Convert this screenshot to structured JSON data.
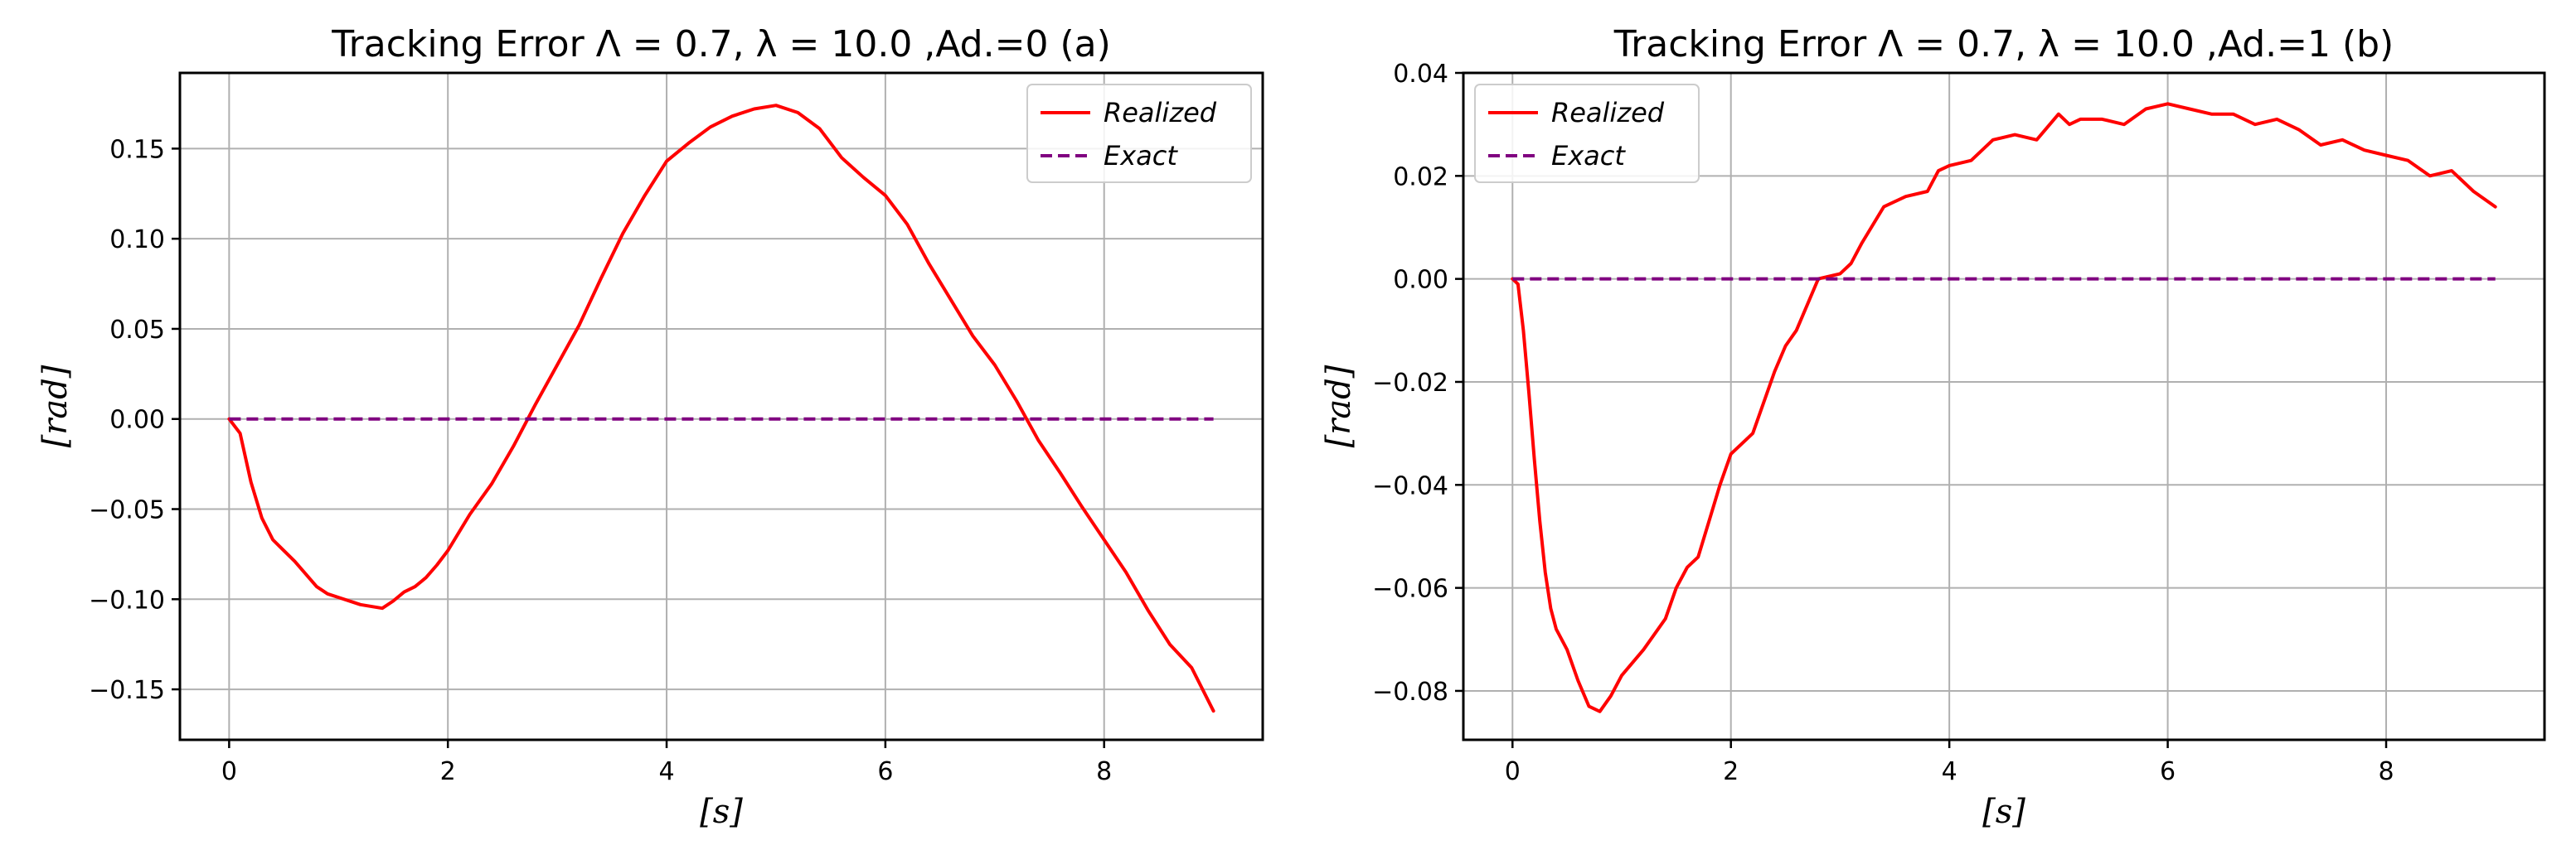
{
  "chart_data": [
    {
      "type": "line",
      "title": "Tracking Error Λ = 0.7, λ = 10.0 ,Ad.=0  (a)",
      "xlabel": "[s]",
      "ylabel": "[rad]",
      "xlim": [
        -0.45,
        9.45
      ],
      "ylim": [
        -0.178,
        0.192
      ],
      "xticks": [
        0,
        2,
        4,
        6,
        8
      ],
      "xtick_labels": [
        "0",
        "2",
        "4",
        "6",
        "8"
      ],
      "yticks": [
        -0.15,
        -0.1,
        -0.05,
        0.0,
        0.05,
        0.1,
        0.15
      ],
      "ytick_labels": [
        "−0.15",
        "−0.10",
        "−0.05",
        "0.00",
        "0.05",
        "0.10",
        "0.15"
      ],
      "grid": true,
      "legend_position": "top-right",
      "series": [
        {
          "name": "Realized",
          "color": "#ff0000",
          "style": "solid",
          "x": [
            0,
            0.1,
            0.2,
            0.3,
            0.4,
            0.5,
            0.6,
            0.7,
            0.8,
            0.9,
            1.0,
            1.2,
            1.4,
            1.5,
            1.6,
            1.7,
            1.8,
            1.9,
            2.0,
            2.2,
            2.4,
            2.6,
            2.8,
            3.0,
            3.2,
            3.4,
            3.6,
            3.8,
            4.0,
            4.2,
            4.4,
            4.6,
            4.8,
            5.0,
            5.2,
            5.4,
            5.6,
            5.8,
            6.0,
            6.2,
            6.4,
            6.6,
            6.8,
            7.0,
            7.2,
            7.4,
            7.6,
            7.8,
            8.0,
            8.2,
            8.4,
            8.6,
            8.8,
            9.0
          ],
          "values": [
            0.0,
            -0.008,
            -0.035,
            -0.055,
            -0.067,
            -0.073,
            -0.079,
            -0.086,
            -0.093,
            -0.097,
            -0.099,
            -0.103,
            -0.105,
            -0.101,
            -0.096,
            -0.093,
            -0.088,
            -0.081,
            -0.073,
            -0.053,
            -0.036,
            -0.015,
            0.008,
            0.03,
            0.052,
            0.078,
            0.103,
            0.124,
            0.143,
            0.153,
            0.162,
            0.168,
            0.172,
            0.174,
            0.17,
            0.161,
            0.145,
            0.134,
            0.124,
            0.108,
            0.086,
            0.066,
            0.046,
            0.03,
            0.01,
            -0.012,
            -0.03,
            -0.049,
            -0.067,
            -0.085,
            -0.106,
            -0.125,
            -0.138,
            -0.162
          ]
        },
        {
          "name": "Exact",
          "color": "#800080",
          "style": "dashed",
          "x": [
            0,
            9.0
          ],
          "values": [
            0.0,
            0.0
          ]
        }
      ]
    },
    {
      "type": "line",
      "title": "Tracking Error Λ = 0.7, λ = 10.0 ,Ad.=1 (b)",
      "xlabel": "[s]",
      "ylabel": "[rad]",
      "xlim": [
        -0.45,
        9.45
      ],
      "ylim": [
        -0.0895,
        0.04
      ],
      "xticks": [
        0,
        2,
        4,
        6,
        8
      ],
      "xtick_labels": [
        "0",
        "2",
        "4",
        "6",
        "8"
      ],
      "yticks": [
        -0.08,
        -0.06,
        -0.04,
        -0.02,
        0.0,
        0.02,
        0.04
      ],
      "ytick_labels": [
        "−0.08",
        "−0.06",
        "−0.04",
        "−0.02",
        "0.00",
        "0.02",
        "0.04"
      ],
      "grid": true,
      "legend_position": "top-left",
      "series": [
        {
          "name": "Realized",
          "color": "#ff0000",
          "style": "solid",
          "x": [
            0,
            0.05,
            0.1,
            0.15,
            0.2,
            0.25,
            0.3,
            0.35,
            0.4,
            0.5,
            0.6,
            0.7,
            0.8,
            0.9,
            1.0,
            1.2,
            1.4,
            1.5,
            1.6,
            1.7,
            1.8,
            1.9,
            2.0,
            2.1,
            2.2,
            2.4,
            2.5,
            2.6,
            2.8,
            3.0,
            3.1,
            3.2,
            3.4,
            3.6,
            3.8,
            3.9,
            4.0,
            4.2,
            4.4,
            4.6,
            4.8,
            5.0,
            5.1,
            5.2,
            5.4,
            5.6,
            5.8,
            6.0,
            6.2,
            6.4,
            6.6,
            6.8,
            7.0,
            7.2,
            7.4,
            7.6,
            7.8,
            8.0,
            8.2,
            8.4,
            8.6,
            8.8,
            9.0
          ],
          "values": [
            0.0,
            -0.001,
            -0.01,
            -0.022,
            -0.035,
            -0.047,
            -0.057,
            -0.064,
            -0.068,
            -0.072,
            -0.078,
            -0.083,
            -0.084,
            -0.081,
            -0.077,
            -0.072,
            -0.066,
            -0.06,
            -0.056,
            -0.054,
            -0.047,
            -0.04,
            -0.034,
            -0.032,
            -0.03,
            -0.018,
            -0.013,
            -0.01,
            0.0,
            0.001,
            0.003,
            0.007,
            0.014,
            0.016,
            0.017,
            0.021,
            0.022,
            0.023,
            0.027,
            0.028,
            0.027,
            0.032,
            0.03,
            0.031,
            0.031,
            0.03,
            0.033,
            0.034,
            0.033,
            0.032,
            0.032,
            0.03,
            0.031,
            0.029,
            0.026,
            0.027,
            0.025,
            0.024,
            0.023,
            0.02,
            0.021,
            0.017,
            0.014
          ]
        },
        {
          "name": "Exact",
          "color": "#800080",
          "style": "dashed",
          "x": [
            0,
            9.0
          ],
          "values": [
            0.0,
            0.0
          ]
        }
      ]
    }
  ]
}
